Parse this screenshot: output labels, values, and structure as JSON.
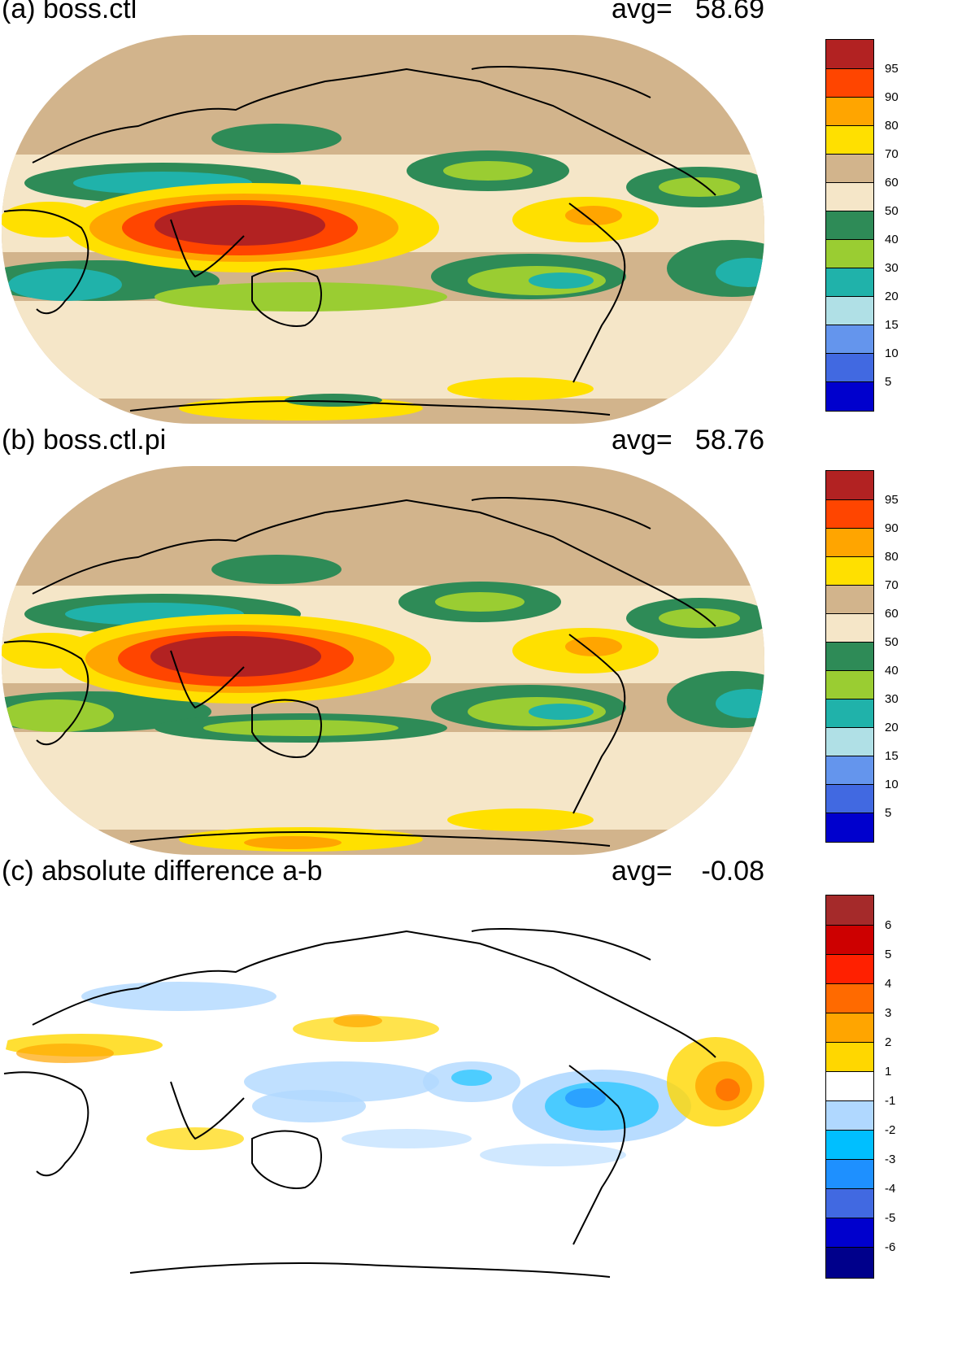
{
  "panels": [
    {
      "title": "(a) boss.ctl",
      "avg_label": "avg=",
      "avg_value": "58.69",
      "colorbar": {
        "labels": [
          "95",
          "90",
          "80",
          "70",
          "60",
          "50",
          "40",
          "30",
          "20",
          "15",
          "10",
          "5"
        ],
        "colors": [
          "#b22222",
          "#ff4500",
          "#ffa500",
          "#ffe000",
          "#d2b48c",
          "#f5e6c8",
          "#2e8b57",
          "#9acd32",
          "#20b2aa",
          "#b0e0e6",
          "#6495ed",
          "#4169e1",
          "#0000cd"
        ]
      }
    },
    {
      "title": "(b) boss.ctl.pi",
      "avg_label": "avg=",
      "avg_value": "58.76",
      "colorbar": {
        "labels": [
          "95",
          "90",
          "80",
          "70",
          "60",
          "50",
          "40",
          "30",
          "20",
          "15",
          "10",
          "5"
        ],
        "colors": [
          "#b22222",
          "#ff4500",
          "#ffa500",
          "#ffe000",
          "#d2b48c",
          "#f5e6c8",
          "#2e8b57",
          "#9acd32",
          "#20b2aa",
          "#b0e0e6",
          "#6495ed",
          "#4169e1",
          "#0000cd"
        ]
      }
    },
    {
      "title": "(c) absolute difference a-b",
      "avg_label": "avg=",
      "avg_value": "-0.08",
      "colorbar": {
        "labels": [
          "6",
          "5",
          "4",
          "3",
          "2",
          "1",
          "-1",
          "-2",
          "-3",
          "-4",
          "-5",
          "-6"
        ],
        "colors": [
          "#a52a2a",
          "#cd0000",
          "#ff2000",
          "#ff6a00",
          "#ffa500",
          "#ffd700",
          "#ffffff",
          "#b0d8ff",
          "#00bfff",
          "#1e90ff",
          "#4169e1",
          "#0000cd",
          "#00008b"
        ]
      }
    }
  ]
}
